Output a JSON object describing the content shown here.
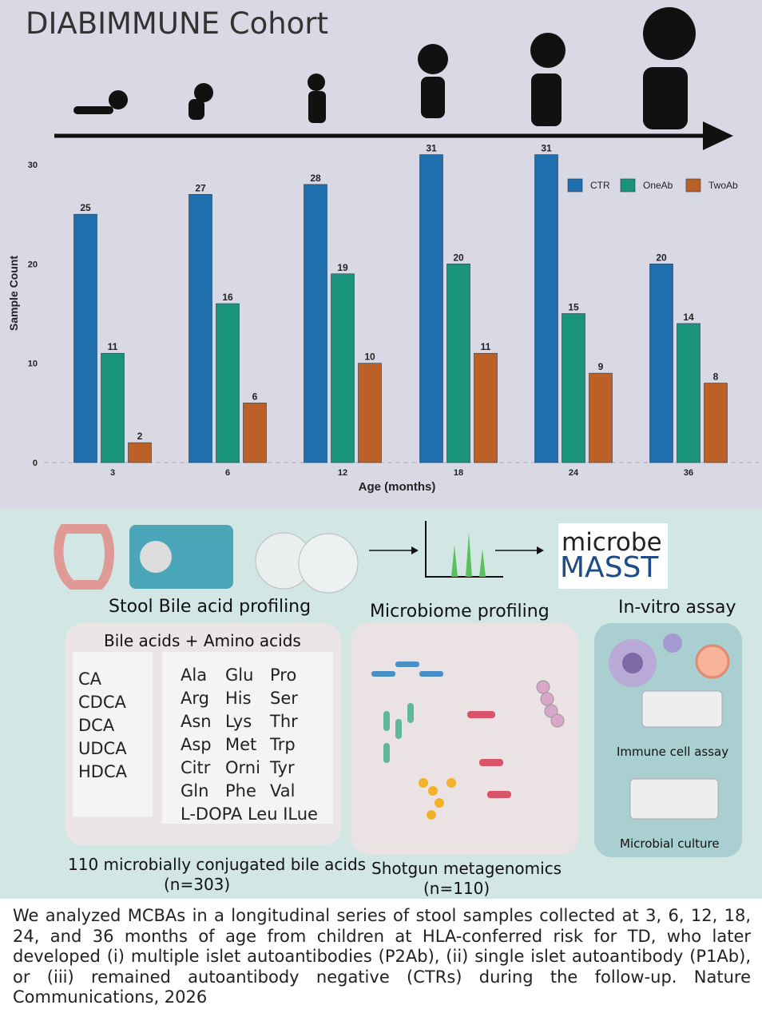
{
  "title": "DIABIMMUNE Cohort",
  "chart_data": {
    "type": "bar",
    "categories": [
      "3",
      "6",
      "12",
      "18",
      "24",
      "36"
    ],
    "series": [
      {
        "name": "CTR",
        "values": [
          25,
          27,
          28,
          31,
          31,
          20
        ],
        "color": "#1f6fae"
      },
      {
        "name": "OneAb",
        "values": [
          11,
          16,
          19,
          20,
          15,
          14
        ],
        "color": "#1a937c"
      },
      {
        "name": "TwoAb",
        "values": [
          2,
          6,
          10,
          11,
          9,
          8
        ],
        "color": "#bb6128"
      }
    ],
    "xlabel": "Age (months)",
    "ylabel": "Sample Count",
    "yticks": [
      "0",
      "10",
      "20",
      "30"
    ],
    "ylim": [
      0,
      31
    ],
    "legend_position": "top-right",
    "data_labels": true
  },
  "workflow": {
    "stool_label": "Stool Bile acid profiling",
    "microbiome_label": "Microbiome profiling",
    "invitro_label": "In-vitro assay",
    "logo_text_top": "microbe",
    "logo_text_bottom": "MASST",
    "acids_header": "Bile acids  + Amino acids",
    "bile_acids": [
      "CA",
      "CDCA",
      "DCA",
      "UDCA",
      "HDCA"
    ],
    "amino_acids": [
      [
        "Ala",
        "Glu",
        "Pro"
      ],
      [
        "Arg",
        "His",
        "Ser"
      ],
      [
        "Asn",
        "Lys",
        "Thr"
      ],
      [
        "Asp",
        "Met",
        "Trp"
      ],
      [
        "Citr",
        "Orni",
        "Tyr"
      ],
      [
        "Gln",
        "Phe",
        "Val"
      ]
    ],
    "amino_last_row": "L-DOPA Leu ILue",
    "conjugated_label": "110 microbially conjugated bile acids",
    "conjugated_n": "(n=303)",
    "shotgun_label": "Shotgun metagenomics",
    "shotgun_n": "(n=110)",
    "immune_label": "Immune cell assay",
    "microbial_label": "Microbial culture"
  },
  "caption": "We analyzed MCBAs in a longitudinal series of stool samples collected at 3, 6, 12, 18, 24, and 36 months of age from children at HLA-conferred risk for TD, who later developed (i) multiple islet autoantibodies (P2Ab), (ii) single islet autoantibody (P1Ab), or (iii) remained autoantibody negative (CTRs) during the follow-up. Nature Communications, 2026"
}
